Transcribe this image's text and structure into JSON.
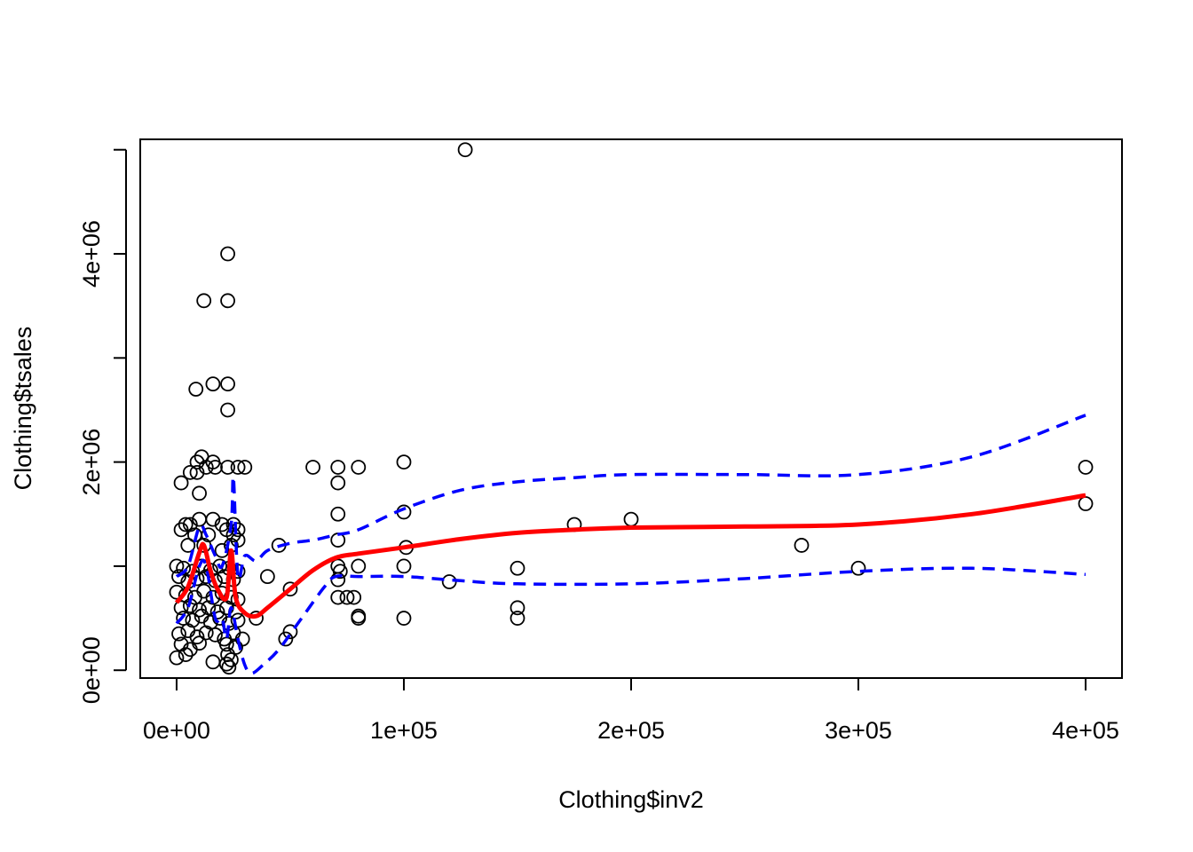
{
  "chart_data": {
    "type": "scatter",
    "title": "",
    "xlabel": "Clothing$inv2",
    "ylabel": "Clothing$tsales",
    "xlim": [
      -16000,
      416000
    ],
    "ylim": [
      -75000,
      5100000
    ],
    "x_ticks": [
      {
        "value": 0,
        "label": "0e+00"
      },
      {
        "value": 100000,
        "label": "1e+05"
      },
      {
        "value": 200000,
        "label": "2e+05"
      },
      {
        "value": 300000,
        "label": "3e+05"
      },
      {
        "value": 400000,
        "label": "4e+05"
      }
    ],
    "y_ticks": [
      {
        "value": 0,
        "label": "0e+00"
      },
      {
        "value": 1000000,
        "label": ""
      },
      {
        "value": 2000000,
        "label": "2e+06"
      },
      {
        "value": 3000000,
        "label": ""
      },
      {
        "value": 4000000,
        "label": "4e+06"
      },
      {
        "value": 5000000,
        "label": ""
      }
    ],
    "colors": {
      "points": "#000000",
      "fit": "#ff0000",
      "band": "#0000ff"
    },
    "points": [
      [
        127000,
        5000000
      ],
      [
        22500,
        4000000
      ],
      [
        12000,
        3550000
      ],
      [
        22500,
        3550000
      ],
      [
        8500,
        2700000
      ],
      [
        16000,
        2750000
      ],
      [
        22500,
        2750000
      ],
      [
        22500,
        2500000
      ],
      [
        11000,
        2050000
      ],
      [
        9000,
        2000000
      ],
      [
        16000,
        2000000
      ],
      [
        6000,
        1900000
      ],
      [
        9000,
        1900000
      ],
      [
        13000,
        1950000
      ],
      [
        17000,
        1950000
      ],
      [
        27000,
        1950000
      ],
      [
        30000,
        1950000
      ],
      [
        2000,
        1800000
      ],
      [
        10000,
        1700000
      ],
      [
        22500,
        1950000
      ],
      [
        60000,
        1950000
      ],
      [
        71000,
        1950000
      ],
      [
        71000,
        1800000
      ],
      [
        80000,
        1950000
      ],
      [
        100000,
        2000000
      ],
      [
        400000,
        1950000
      ],
      [
        400000,
        1600000
      ],
      [
        4000,
        1400000
      ],
      [
        6000,
        1400000
      ],
      [
        10000,
        1450000
      ],
      [
        16000,
        1450000
      ],
      [
        20000,
        1400000
      ],
      [
        25000,
        1400000
      ],
      [
        27000,
        1350000
      ],
      [
        2000,
        1350000
      ],
      [
        8000,
        1300000
      ],
      [
        14000,
        1300000
      ],
      [
        22000,
        1350000
      ],
      [
        25000,
        1300000
      ],
      [
        27000,
        1250000
      ],
      [
        5000,
        1200000
      ],
      [
        12000,
        1200000
      ],
      [
        20000,
        1150000
      ],
      [
        24000,
        1200000
      ],
      [
        45000,
        1200000
      ],
      [
        71000,
        1250000
      ],
      [
        71000,
        1500000
      ],
      [
        100000,
        1520000
      ],
      [
        101000,
        1180000
      ],
      [
        175000,
        1400000
      ],
      [
        200000,
        1450000
      ],
      [
        275000,
        1200000
      ],
      [
        0,
        1000000
      ],
      [
        3000,
        980000
      ],
      [
        7000,
        950000
      ],
      [
        11000,
        1000000
      ],
      [
        15000,
        960000
      ],
      [
        19000,
        1000000
      ],
      [
        23000,
        980000
      ],
      [
        27000,
        950000
      ],
      [
        1000,
        900000
      ],
      [
        5000,
        850000
      ],
      [
        9000,
        880000
      ],
      [
        13000,
        900000
      ],
      [
        17000,
        860000
      ],
      [
        21000,
        900000
      ],
      [
        25000,
        870000
      ],
      [
        40000,
        900000
      ],
      [
        71000,
        1000000
      ],
      [
        72000,
        950000
      ],
      [
        80000,
        1000000
      ],
      [
        100000,
        1000000
      ],
      [
        150000,
        980000
      ],
      [
        300000,
        980000
      ],
      [
        0,
        750000
      ],
      [
        4000,
        720000
      ],
      [
        8000,
        700000
      ],
      [
        12000,
        760000
      ],
      [
        16000,
        700000
      ],
      [
        20000,
        740000
      ],
      [
        24000,
        700000
      ],
      [
        27000,
        680000
      ],
      [
        2000,
        600000
      ],
      [
        6000,
        620000
      ],
      [
        10000,
        580000
      ],
      [
        14000,
        600000
      ],
      [
        18000,
        560000
      ],
      [
        22000,
        600000
      ],
      [
        26000,
        560000
      ],
      [
        50000,
        780000
      ],
      [
        71000,
        700000
      ],
      [
        75000,
        700000
      ],
      [
        78000,
        700000
      ],
      [
        120000,
        850000
      ],
      [
        71000,
        870000
      ],
      [
        3000,
        500000
      ],
      [
        7000,
        480000
      ],
      [
        11000,
        520000
      ],
      [
        15000,
        460000
      ],
      [
        19000,
        500000
      ],
      [
        23000,
        450000
      ],
      [
        27000,
        480000
      ],
      [
        35000,
        500000
      ],
      [
        80000,
        520000
      ],
      [
        80000,
        500000
      ],
      [
        100000,
        500000
      ],
      [
        150000,
        600000
      ],
      [
        150000,
        500000
      ],
      [
        1000,
        350000
      ],
      [
        5000,
        380000
      ],
      [
        9000,
        320000
      ],
      [
        13000,
        360000
      ],
      [
        17000,
        340000
      ],
      [
        21000,
        300000
      ],
      [
        25000,
        360000
      ],
      [
        29000,
        300000
      ],
      [
        48000,
        300000
      ],
      [
        50000,
        370000
      ],
      [
        2000,
        250000
      ],
      [
        6000,
        200000
      ],
      [
        10000,
        260000
      ],
      [
        22000,
        250000
      ],
      [
        26000,
        220000
      ],
      [
        4000,
        150000
      ],
      [
        0,
        120000
      ],
      [
        16000,
        80000
      ],
      [
        22000,
        60000
      ],
      [
        23000,
        30000
      ],
      [
        22500,
        150000
      ],
      [
        24000,
        100000
      ]
    ],
    "fit": {
      "x": [
        0,
        5000,
        10000,
        12000,
        15000,
        18000,
        22000,
        24000,
        26000,
        30000,
        35000,
        40000,
        50000,
        60000,
        70000,
        80000,
        100000,
        125000,
        150000,
        175000,
        200000,
        250000,
        300000,
        350000,
        400000
      ],
      "y": [
        650000,
        800000,
        1130000,
        1200000,
        950000,
        780000,
        700000,
        1150000,
        700000,
        550000,
        520000,
        600000,
        780000,
        960000,
        1080000,
        1120000,
        1180000,
        1260000,
        1320000,
        1350000,
        1370000,
        1380000,
        1400000,
        1500000,
        1680000
      ]
    },
    "band_upper": {
      "x": [
        0,
        5000,
        10000,
        13000,
        17000,
        20000,
        24000,
        25000,
        27000,
        30000,
        35000,
        40000,
        50000,
        60000,
        70000,
        80000,
        100000,
        125000,
        150000,
        175000,
        200000,
        250000,
        300000,
        350000,
        400000
      ],
      "y": [
        900000,
        1000000,
        1380000,
        1300000,
        1100000,
        1000000,
        1400000,
        1850000,
        900000,
        1100000,
        1050000,
        1150000,
        1220000,
        1250000,
        1300000,
        1350000,
        1550000,
        1730000,
        1810000,
        1850000,
        1880000,
        1880000,
        1880000,
        2050000,
        2450000
      ]
    },
    "band_lower": {
      "x": [
        0,
        5000,
        10000,
        13000,
        17000,
        20000,
        22000,
        24000,
        27000,
        30000,
        33000,
        38000,
        45000,
        55000,
        65000,
        70000,
        80000,
        100000,
        125000,
        150000,
        200000,
        250000,
        300000,
        350000,
        400000
      ],
      "y": [
        450000,
        600000,
        1000000,
        1000000,
        500000,
        500000,
        300000,
        600000,
        300000,
        50000,
        -30000,
        50000,
        200000,
        500000,
        800000,
        900000,
        900000,
        900000,
        860000,
        830000,
        830000,
        880000,
        950000,
        980000,
        920000
      ]
    }
  }
}
